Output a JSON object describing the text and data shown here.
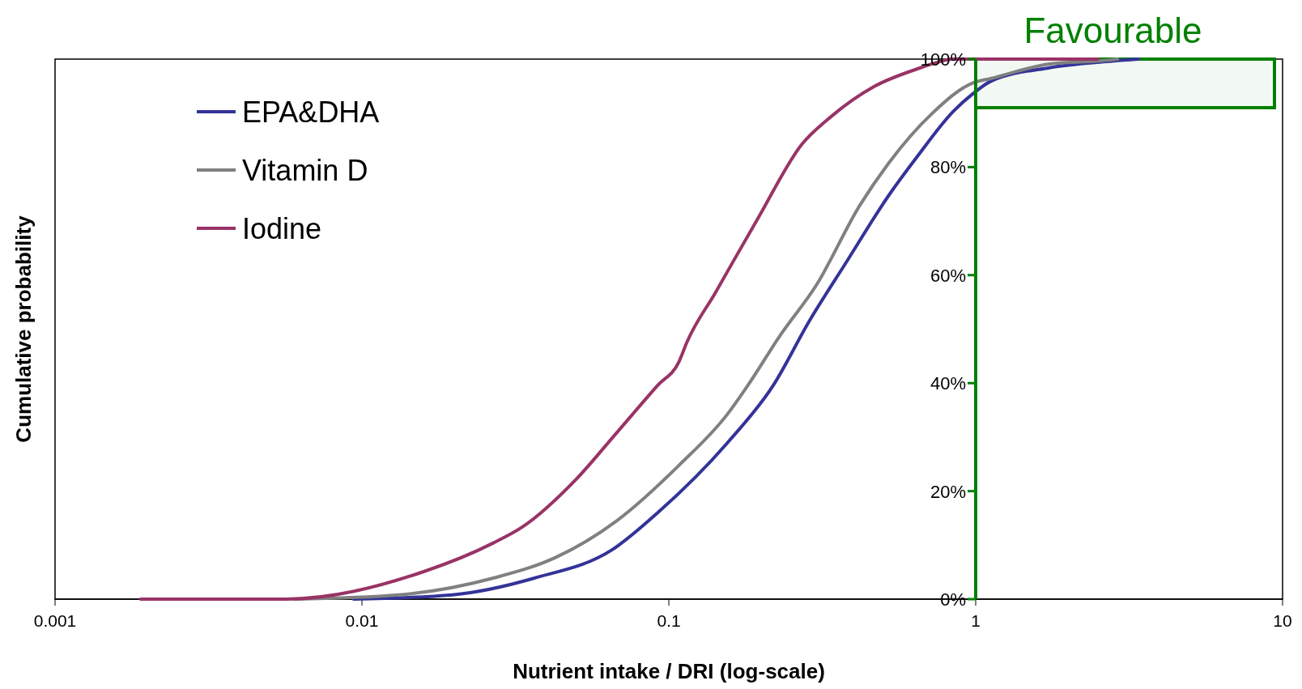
{
  "chart_data": {
    "type": "line",
    "xlabel": "Nutrient intake / DRI  (log-scale)",
    "ylabel": "Cumulative probability",
    "log": "x",
    "xlim": [
      0.001,
      10
    ],
    "xticks": [
      0.001,
      0.01,
      0.1,
      1,
      10
    ],
    "ylim": [
      0,
      100
    ],
    "yticks": [
      {
        "value": 0,
        "label": "0%"
      },
      {
        "value": 20,
        "label": "20%"
      },
      {
        "value": 40,
        "label": "40%"
      },
      {
        "value": 60,
        "label": "60%"
      },
      {
        "value": 80,
        "label": "80%"
      },
      {
        "value": 100,
        "label": "100%"
      }
    ],
    "grid": false,
    "legend": "top left",
    "marker": "none",
    "line_style": "solid",
    "bands": [
      {
        "axis": "y",
        "from": 91,
        "to": 100,
        "label": "Favourable",
        "color": "#008000"
      }
    ],
    "series": [
      {
        "name": "EPA&DHA",
        "color": "#333399",
        "x": [
          0.0094,
          0.0197,
          0.0365,
          0.0656,
          0.092,
          0.155,
          0.219,
          0.287,
          0.376,
          0.52,
          0.646,
          0.845,
          0.98,
          1.12,
          1.74,
          2.61,
          3.39
        ],
        "values": [
          0,
          0.8,
          3.9,
          9.2,
          16,
          28.9,
          39.6,
          51.5,
          62.1,
          74.7,
          82,
          90.3,
          93.6,
          95.9,
          98.4,
          99.5,
          100
        ]
      },
      {
        "name": "Vitamin D",
        "color": "#808080",
        "x": [
          0.006,
          0.0132,
          0.0268,
          0.0427,
          0.0676,
          0.108,
          0.155,
          0.181,
          0.231,
          0.303,
          0.418,
          0.52,
          0.72,
          0.98,
          1.12,
          1.74,
          2.71,
          2.9
        ],
        "values": [
          0,
          0.8,
          3.9,
          7.7,
          14.5,
          24.8,
          34.2,
          39.6,
          48.9,
          58.2,
          72.8,
          80.7,
          89.9,
          95.6,
          96.4,
          99.1,
          99.8,
          100
        ]
      },
      {
        "name": "Iodine",
        "color": "#993366",
        "x": [
          0.0019,
          0.0056,
          0.0159,
          0.0268,
          0.0334,
          0.0497,
          0.0676,
          0.092,
          0.108,
          0.1146,
          0.142,
          0.196,
          0.272,
          0.337,
          0.466,
          0.646,
          0.76,
          0.84,
          2.5
        ],
        "values": [
          0,
          0,
          5.1,
          10.4,
          13.4,
          22.1,
          30.8,
          39.6,
          44,
          47.6,
          56.8,
          70.7,
          84.3,
          89.3,
          94.9,
          98.2,
          99.5,
          100,
          100
        ]
      }
    ]
  }
}
